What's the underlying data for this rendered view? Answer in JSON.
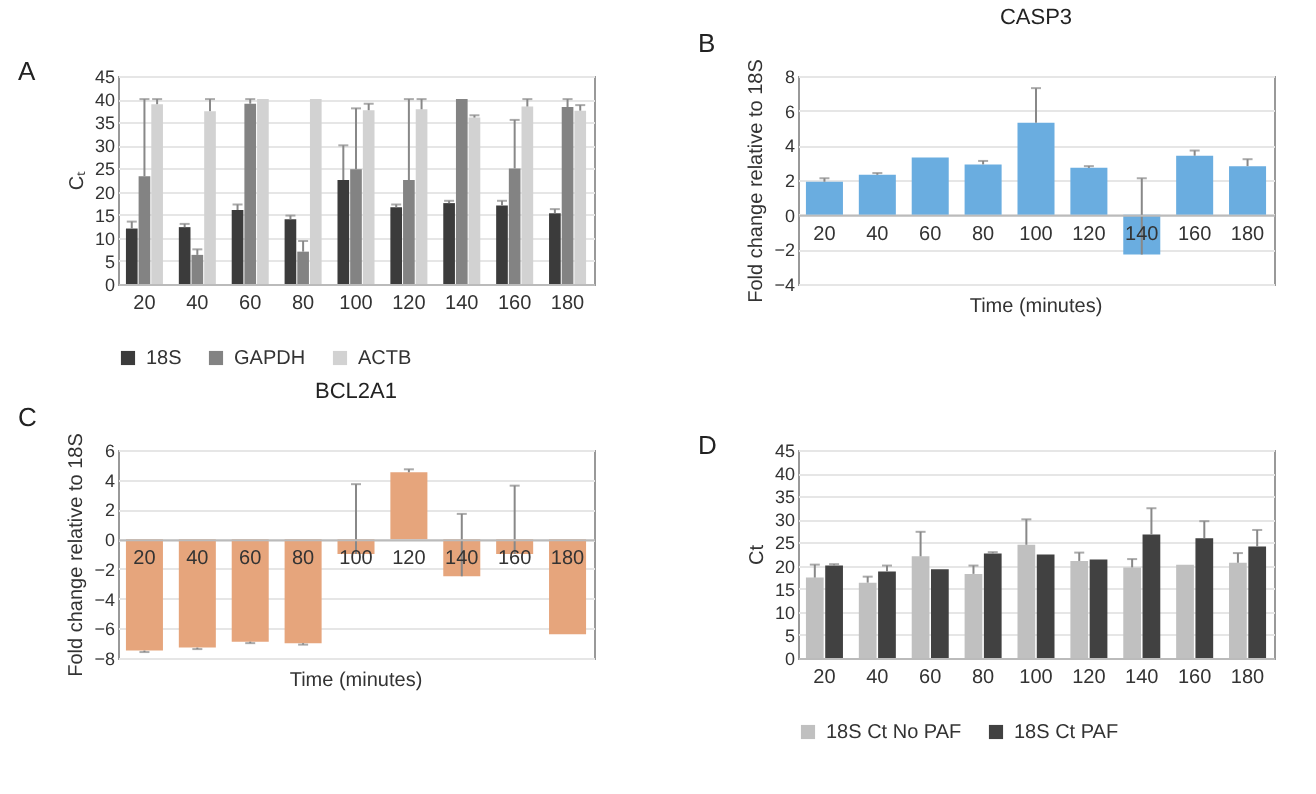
{
  "chart_data": [
    {
      "type": "bar",
      "annotations": [
        "A"
      ],
      "ylabel": "Cₜ",
      "categories": [
        "20",
        "40",
        "60",
        "80",
        "100",
        "120",
        "140",
        "160",
        "180"
      ],
      "ylim": [
        0,
        45
      ],
      "yticks": [
        0,
        5,
        10,
        15,
        20,
        25,
        30,
        35,
        40,
        45
      ],
      "grid": "y",
      "legend": "bottom",
      "series": [
        {
          "name": "18S",
          "color": "#3b3b3b",
          "values": [
            12,
            12.3,
            16,
            14,
            22.5,
            16.6,
            17.5,
            17,
            15.3
          ],
          "errors": [
            [
              12,
              13.5
            ],
            [
              12.3,
              13
            ],
            [
              16,
              17.2
            ],
            [
              14,
              14.8
            ],
            [
              22.5,
              30
            ],
            [
              16.6,
              17.2
            ],
            [
              17.5,
              18
            ],
            [
              17,
              18
            ],
            [
              15.3,
              16.2
            ]
          ]
        },
        {
          "name": "GAPDH",
          "color": "#838383",
          "values": [
            23.3,
            6.3,
            39,
            7,
            24.8,
            22.5,
            40,
            25,
            38.3
          ],
          "errors": [
            [
              23.3,
              40
            ],
            [
              6.3,
              7.5
            ],
            [
              39,
              40
            ],
            [
              7,
              9.3
            ],
            [
              24.8,
              38
            ],
            [
              22.5,
              40
            ],
            null,
            [
              25,
              35.5
            ],
            [
              38.3,
              40
            ]
          ]
        },
        {
          "name": "ACTB",
          "color": "#d2d2d2",
          "values": [
            38.9,
            37.4,
            40,
            40,
            37.6,
            37.8,
            36,
            38.4,
            37.5
          ],
          "errors": [
            [
              38.9,
              40
            ],
            [
              37.4,
              40
            ],
            null,
            null,
            [
              37.6,
              39
            ],
            [
              37.8,
              40
            ],
            [
              36,
              36.5
            ],
            [
              38.4,
              40
            ],
            [
              37.5,
              38.7
            ]
          ]
        }
      ]
    },
    {
      "type": "bar",
      "annotations": [
        "B"
      ],
      "title": "CASP3",
      "xlabel": "Time (minutes)",
      "ylabel": "Fold change relative to 18S",
      "categories": [
        "20",
        "40",
        "60",
        "80",
        "100",
        "120",
        "140",
        "160",
        "180"
      ],
      "ylim": [
        -4,
        8
      ],
      "yticks": [
        -4,
        -2,
        0,
        2,
        4,
        6,
        8
      ],
      "grid": "y",
      "series": [
        {
          "color": "#6aade0",
          "values": [
            1.9,
            2.3,
            3.3,
            2.9,
            5.3,
            2.7,
            -2.3,
            3.4,
            2.8
          ],
          "errors": [
            [
              1.9,
              2.1
            ],
            [
              2.3,
              2.4
            ],
            null,
            [
              2.9,
              3.1
            ],
            [
              5.3,
              7.3
            ],
            [
              2.7,
              2.8
            ],
            [
              -2.3,
              2.1
            ],
            [
              3.4,
              3.7
            ],
            [
              2.8,
              3.2
            ]
          ]
        }
      ]
    },
    {
      "type": "bar",
      "annotations": [
        "C"
      ],
      "title": "BCL2A1",
      "xlabel": "Time (minutes)",
      "ylabel": "Fold change relative to 18S",
      "categories": [
        "20",
        "40",
        "60",
        "80",
        "100",
        "120",
        "140",
        "160",
        "180"
      ],
      "ylim": [
        -8,
        6
      ],
      "yticks": [
        -8,
        -6,
        -4,
        -2,
        0,
        2,
        4,
        6
      ],
      "grid": "y",
      "series": [
        {
          "color": "#e6a57c",
          "values": [
            -7.5,
            -7.3,
            -6.9,
            -7,
            -1,
            4.5,
            -2.5,
            -1,
            -6.4
          ],
          "errors": [
            [
              -7.6,
              -7.5
            ],
            [
              -7.4,
              -7.3
            ],
            [
              -7,
              -6.9
            ],
            [
              -7.1,
              -7
            ],
            [
              -1,
              3.7
            ],
            [
              4.5,
              4.7
            ],
            [
              -2.5,
              1.7
            ],
            [
              -1,
              3.6
            ],
            null
          ]
        }
      ]
    },
    {
      "type": "bar",
      "annotations": [
        "D"
      ],
      "ylabel": "Ct",
      "categories": [
        "20",
        "40",
        "60",
        "80",
        "100",
        "120",
        "140",
        "160",
        "180"
      ],
      "ylim": [
        0,
        45
      ],
      "yticks": [
        0,
        5,
        10,
        15,
        20,
        25,
        30,
        35,
        40,
        45
      ],
      "grid": "y",
      "legend": "bottom",
      "series": [
        {
          "name": "18S Ct No PAF",
          "color": "#c0c0c0",
          "values": [
            17.4,
            16.3,
            22,
            18.2,
            24.5,
            21,
            19.6,
            20.2,
            20.6
          ],
          "errors": [
            [
              17.4,
              20.2
            ],
            [
              16.3,
              17.6
            ],
            [
              22,
              27.3
            ],
            [
              18.2,
              20
            ],
            [
              24.5,
              30
            ],
            [
              21,
              22.8
            ],
            [
              19.6,
              21.4
            ],
            null,
            [
              20.6,
              22.7
            ]
          ]
        },
        {
          "name": "18S Ct PAF",
          "color": "#414141",
          "values": [
            20,
            18.7,
            19.2,
            22.6,
            22.4,
            21.3,
            26.7,
            25.9,
            24.1
          ],
          "errors": [
            [
              20,
              20.3
            ],
            [
              18.7,
              20
            ],
            null,
            [
              22.6,
              22.9
            ],
            null,
            null,
            [
              26.7,
              32.4
            ],
            [
              25.9,
              29.6
            ],
            [
              24.1,
              27.7
            ]
          ]
        }
      ]
    }
  ]
}
